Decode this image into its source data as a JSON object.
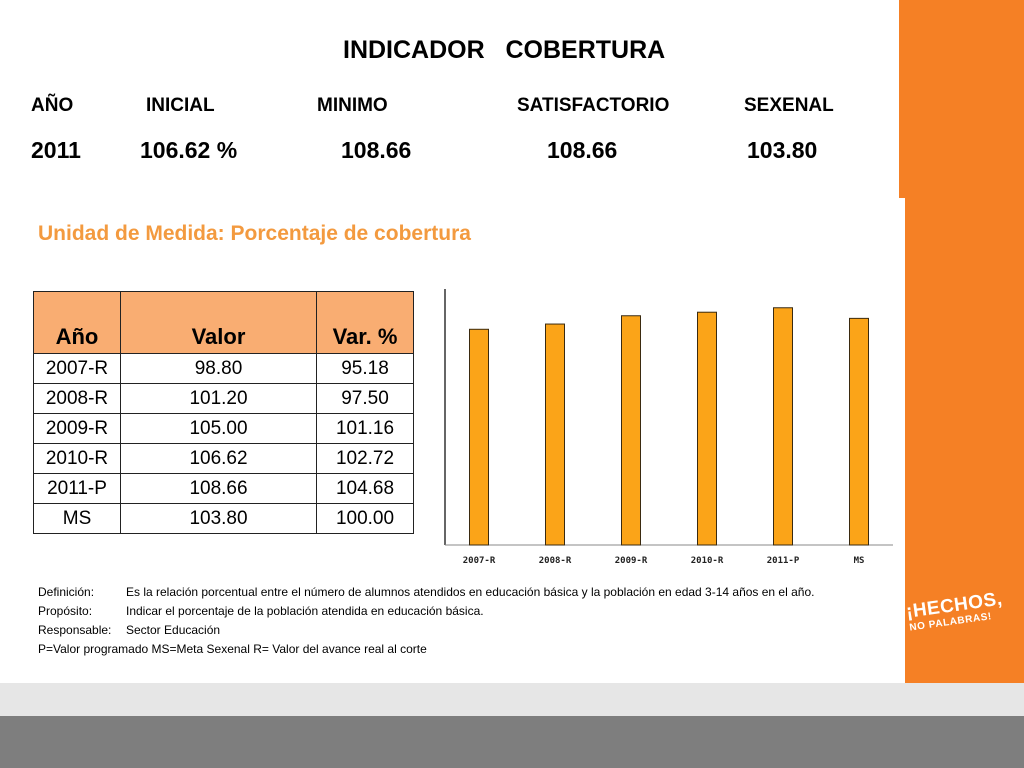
{
  "title": "INDICADOR   COBERTURA",
  "summary": {
    "headers": [
      "AÑO",
      "INICIAL",
      "MINIMO",
      "SATISFACTORIO",
      "SEXENAL"
    ],
    "values": [
      "2011",
      "106.62 %",
      "108.66",
      "108.66",
      "103.80"
    ]
  },
  "unit_label": "Unidad de Medida:  Porcentaje de cobertura",
  "table": {
    "headers": [
      "Año",
      "Valor",
      "Var. %"
    ],
    "rows": [
      [
        "2007-R",
        "98.80",
        "95.18"
      ],
      [
        "2008-R",
        "101.20",
        "97.50"
      ],
      [
        "2009-R",
        "105.00",
        "101.16"
      ],
      [
        "2010-R",
        "106.62",
        "102.72"
      ],
      [
        "2011-P",
        "108.66",
        "104.68"
      ],
      [
        "MS",
        "103.80",
        "100.00"
      ]
    ]
  },
  "chart_data": {
    "type": "bar",
    "categories": [
      "2007-R",
      "2008-R",
      "2009-R",
      "2010-R",
      "2011-P",
      "MS"
    ],
    "values": [
      98.8,
      101.2,
      105.0,
      106.62,
      108.66,
      103.8
    ],
    "ylim": [
      0,
      120
    ],
    "grid": false,
    "bar_color": "#fba418"
  },
  "notes": {
    "definicion_label": "Definición:",
    "definicion_text": "Es la relación porcentual entre el número de alumnos atendidos en educación básica y la población en edad 3-14 años en el año.",
    "proposito_label": "Propósito:",
    "proposito_text": "Indicar el porcentaje de la población atendida en educación básica.",
    "responsable_label": "Responsable:",
    "responsable_text": "Sector Educación",
    "legend": "P=Valor programado    MS=Meta Sexenal    R= Valor del avance real al corte"
  },
  "slogan": {
    "line1": "¡HECHOS,",
    "line2": "NO PALABRAS!"
  },
  "colors": {
    "accent_orange": "#f58025",
    "table_header": "#f9ad72",
    "unit_label": "#f39a3f"
  }
}
